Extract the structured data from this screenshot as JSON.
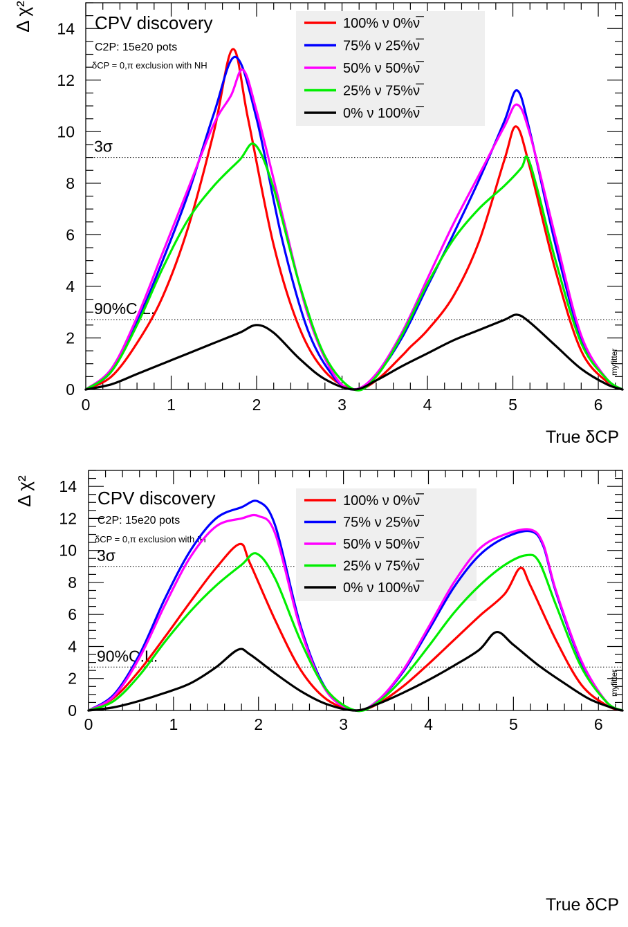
{
  "chart_data": [
    {
      "type": "line",
      "ylabel": "Δ χ²",
      "xlabel": "True δCP",
      "xlim": [
        0,
        6.283
      ],
      "ylim": [
        0,
        15
      ],
      "xticks": [
        "0",
        "1",
        "2",
        "3",
        "4",
        "5",
        "6"
      ],
      "yticks": [
        "0",
        "2",
        "4",
        "6",
        "8",
        "10",
        "12",
        "14"
      ],
      "title": "CPV discovery",
      "subtitle": "C2P: 15e20 pots",
      "note": "δCP = 0,π exclusion with NH",
      "watermark": "myfitter",
      "ref_lines": [
        {
          "label": "3σ",
          "y": 9
        },
        {
          "label": "90%C.L.",
          "y": 2.71
        }
      ],
      "legend_position": "top-center",
      "series": [
        {
          "name": "100% ν 0%ν̅",
          "color": "#ff0000",
          "x": [
            0,
            0.3,
            0.6,
            0.9,
            1.2,
            1.5,
            1.72,
            1.9,
            2.2,
            2.5,
            2.8,
            3.14,
            3.4,
            3.7,
            3.8,
            4.0,
            4.3,
            4.6,
            4.9,
            5.04,
            5.2,
            5.5,
            5.8,
            6.1,
            6.283
          ],
          "y": [
            0,
            0.5,
            1.8,
            3.6,
            6.3,
            10.0,
            13.2,
            10.5,
            5.6,
            2.4,
            0.7,
            0,
            0.35,
            1.3,
            1.65,
            2.3,
            3.6,
            5.7,
            8.9,
            10.2,
            8.6,
            4.6,
            1.5,
            0.3,
            0
          ]
        },
        {
          "name": "75% ν 25%ν̅",
          "color": "#0000ff",
          "x": [
            0,
            0.3,
            0.6,
            0.9,
            1.2,
            1.5,
            1.75,
            2.0,
            2.3,
            2.6,
            2.9,
            3.14,
            3.4,
            3.7,
            4.0,
            4.3,
            4.6,
            4.9,
            5.05,
            5.2,
            5.5,
            5.8,
            6.1,
            6.283
          ],
          "y": [
            0,
            0.7,
            2.6,
            5.0,
            7.6,
            10.7,
            12.9,
            10.5,
            5.8,
            2.3,
            0.5,
            0,
            0.55,
            2.0,
            4.0,
            6.0,
            8.1,
            10.4,
            11.6,
            10.0,
            5.6,
            2.0,
            0.4,
            0
          ]
        },
        {
          "name": "50% ν 50%ν̅",
          "color": "#ff00ff",
          "x": [
            0,
            0.3,
            0.6,
            0.9,
            1.2,
            1.5,
            1.7,
            1.84,
            2.0,
            2.3,
            2.6,
            2.9,
            3.14,
            3.4,
            3.7,
            4.0,
            4.3,
            4.6,
            4.9,
            5.05,
            5.2,
            5.5,
            5.8,
            6.1,
            6.283
          ],
          "y": [
            0,
            0.8,
            2.8,
            5.3,
            7.8,
            10.3,
            11.4,
            12.4,
            10.8,
            6.8,
            2.9,
            0.6,
            0,
            0.6,
            2.2,
            4.3,
            6.4,
            8.3,
            10.2,
            11.05,
            9.9,
            5.9,
            2.1,
            0.4,
            0
          ]
        },
        {
          "name": "25% ν 75%ν̅",
          "color": "#00ee00",
          "x": [
            0,
            0.3,
            0.6,
            0.9,
            1.2,
            1.5,
            1.8,
            1.98,
            2.2,
            2.5,
            2.8,
            3.14,
            3.4,
            3.7,
            4.0,
            4.3,
            4.6,
            4.9,
            5.1,
            5.17,
            5.3,
            5.5,
            5.8,
            6.1,
            6.283
          ],
          "y": [
            0,
            0.7,
            2.5,
            4.7,
            6.6,
            7.9,
            8.9,
            9.5,
            7.8,
            4.1,
            1.3,
            0,
            0.5,
            2.1,
            4.1,
            5.8,
            7.0,
            7.9,
            8.6,
            9.0,
            7.6,
            5.0,
            1.8,
            0.4,
            0
          ]
        },
        {
          "name": "0% ν 100%ν̅",
          "color": "#000000",
          "x": [
            0,
            0.3,
            0.6,
            0.9,
            1.2,
            1.5,
            1.8,
            2.0,
            2.2,
            2.5,
            2.8,
            3.14,
            3.4,
            3.7,
            4.0,
            4.3,
            4.6,
            4.9,
            5.05,
            5.2,
            5.5,
            5.8,
            6.1,
            6.283
          ],
          "y": [
            0,
            0.2,
            0.6,
            1.0,
            1.4,
            1.8,
            2.2,
            2.5,
            2.2,
            1.2,
            0.4,
            0,
            0.35,
            0.9,
            1.4,
            1.9,
            2.3,
            2.7,
            2.9,
            2.6,
            1.7,
            0.8,
            0.2,
            0
          ]
        }
      ]
    },
    {
      "type": "line",
      "ylabel": "Δ χ²",
      "xlabel": "True δCP",
      "xlim": [
        0,
        6.283
      ],
      "ylim": [
        0,
        15
      ],
      "xticks": [
        "0",
        "1",
        "2",
        "3",
        "4",
        "5",
        "6"
      ],
      "yticks": [
        "0",
        "2",
        "4",
        "6",
        "8",
        "10",
        "12",
        "14"
      ],
      "title": "CPV discovery",
      "subtitle": "C2P: 15e20 pots",
      "note": "δCP = 0,π exclusion with IH",
      "watermark": "myfitter",
      "ref_lines": [
        {
          "label": "3σ",
          "y": 9
        },
        {
          "label": "90%C.L.",
          "y": 2.71
        }
      ],
      "legend_position": "top-center",
      "series": [
        {
          "name": "100% ν 0%ν̅",
          "color": "#ff0000",
          "x": [
            0,
            0.3,
            0.6,
            0.9,
            1.2,
            1.5,
            1.78,
            1.9,
            2.2,
            2.5,
            2.8,
            3.14,
            3.4,
            3.7,
            4.0,
            4.3,
            4.6,
            4.9,
            5.08,
            5.2,
            5.5,
            5.8,
            6.1,
            6.283
          ],
          "y": [
            0,
            0.8,
            2.5,
            4.6,
            6.8,
            8.9,
            10.4,
            9.2,
            5.6,
            2.5,
            0.7,
            0,
            0.4,
            1.5,
            2.9,
            4.4,
            5.9,
            7.3,
            8.9,
            7.8,
            4.4,
            1.6,
            0.3,
            0
          ]
        },
        {
          "name": "75% ν 25%ν̅",
          "color": "#0000ff",
          "x": [
            0,
            0.3,
            0.6,
            0.9,
            1.2,
            1.5,
            1.8,
            2.0,
            2.2,
            2.5,
            2.8,
            3.14,
            3.4,
            3.7,
            4.0,
            4.3,
            4.6,
            4.9,
            5.2,
            5.35,
            5.5,
            5.8,
            6.1,
            6.283
          ],
          "y": [
            0,
            1.0,
            3.5,
            7.0,
            10.0,
            12.0,
            12.7,
            13.05,
            11.5,
            5.2,
            1.3,
            0,
            0.6,
            2.4,
            5.0,
            7.7,
            9.7,
            10.8,
            11.2,
            10.3,
            7.4,
            3.0,
            0.5,
            0
          ]
        },
        {
          "name": "50% ν 50%ν̅",
          "color": "#ff00ff",
          "x": [
            0,
            0.3,
            0.6,
            0.9,
            1.2,
            1.5,
            1.8,
            2.0,
            2.2,
            2.5,
            2.8,
            3.14,
            3.4,
            3.7,
            4.0,
            4.3,
            4.6,
            4.9,
            5.2,
            5.35,
            5.5,
            5.8,
            6.1,
            6.283
          ],
          "y": [
            0,
            0.9,
            3.3,
            6.6,
            9.6,
            11.5,
            12.0,
            12.15,
            11.0,
            5.0,
            1.2,
            0,
            0.6,
            2.5,
            5.2,
            8.0,
            10.1,
            11.0,
            11.3,
            10.4,
            7.5,
            3.1,
            0.5,
            0
          ]
        },
        {
          "name": "25% ν 75%ν̅",
          "color": "#00ee00",
          "x": [
            0,
            0.3,
            0.6,
            0.9,
            1.2,
            1.5,
            1.8,
            1.98,
            2.2,
            2.5,
            2.8,
            3.14,
            3.4,
            3.7,
            4.0,
            4.3,
            4.6,
            4.9,
            5.15,
            5.3,
            5.5,
            5.8,
            6.1,
            6.283
          ],
          "y": [
            0,
            0.6,
            2.2,
            4.3,
            6.2,
            7.8,
            9.1,
            9.8,
            8.2,
            4.3,
            1.3,
            0,
            0.5,
            2.0,
            4.0,
            6.1,
            7.8,
            9.1,
            9.7,
            9.3,
            6.6,
            2.7,
            0.5,
            0
          ]
        },
        {
          "name": "0% ν 100%ν̅",
          "color": "#000000",
          "x": [
            0,
            0.3,
            0.6,
            0.9,
            1.2,
            1.5,
            1.76,
            1.9,
            2.2,
            2.5,
            2.8,
            3.14,
            3.4,
            3.7,
            4.0,
            4.3,
            4.6,
            4.8,
            5.0,
            5.3,
            5.6,
            5.9,
            6.2,
            6.283
          ],
          "y": [
            0,
            0.2,
            0.6,
            1.1,
            1.7,
            2.7,
            3.8,
            3.5,
            2.3,
            1.2,
            0.4,
            0,
            0.4,
            1.1,
            1.9,
            2.8,
            3.8,
            4.9,
            4.1,
            2.8,
            1.7,
            0.7,
            0.1,
            0
          ]
        }
      ]
    }
  ]
}
